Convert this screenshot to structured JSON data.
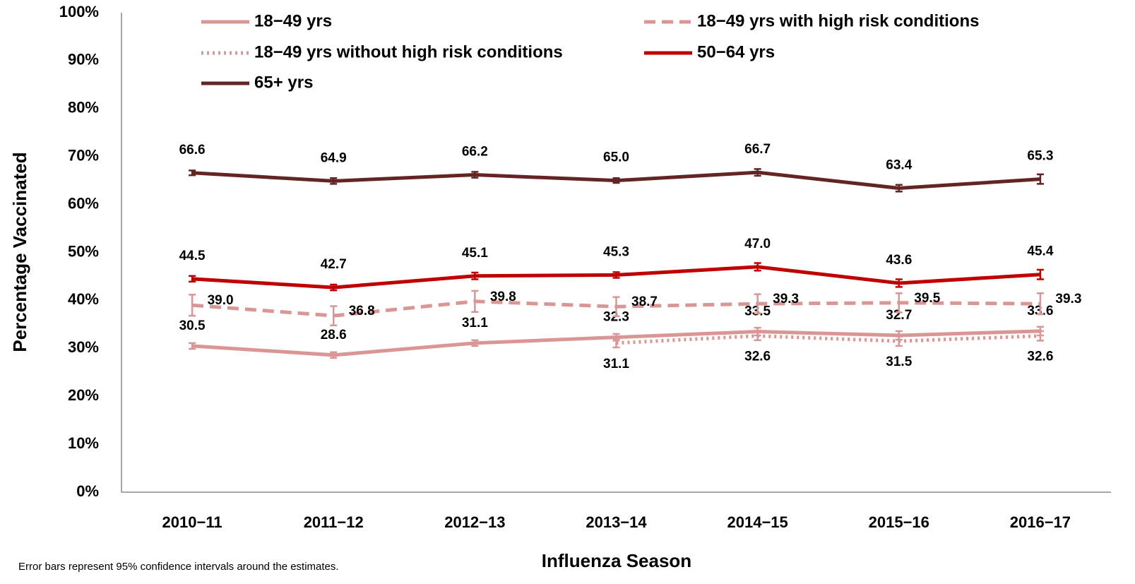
{
  "chart_data": {
    "type": "line",
    "x_label": "Influenza Season",
    "y_label": "Percentage Vaccinated",
    "note": "Error bars represent 95% confidence intervals around the estimates.",
    "categories": [
      "2010−11",
      "2011−12",
      "2012−13",
      "2013−14",
      "2014−15",
      "2015−16",
      "2016−17"
    ],
    "ylim": [
      0,
      100
    ],
    "yticks": [
      {
        "value": 0,
        "label": "0%"
      },
      {
        "value": 10,
        "label": "10%"
      },
      {
        "value": 20,
        "label": "20%"
      },
      {
        "value": 30,
        "label": "30%"
      },
      {
        "value": 40,
        "label": "40%"
      },
      {
        "value": 50,
        "label": "50%"
      },
      {
        "value": 60,
        "label": "60%"
      },
      {
        "value": 70,
        "label": "70%"
      },
      {
        "value": 80,
        "label": "80%"
      },
      {
        "value": 90,
        "label": "90%"
      },
      {
        "value": 100,
        "label": "100%"
      }
    ],
    "grid": false,
    "series": [
      {
        "name": "18−49 yrs",
        "color": "#d99694",
        "line_style": "solid",
        "values": [
          30.5,
          28.6,
          31.1,
          32.3,
          33.5,
          32.7,
          33.6
        ],
        "value_labels": [
          "30.5",
          "28.6",
          "31.1",
          "32.3",
          "33.5",
          "32.7",
          "33.6"
        ],
        "errors": [
          0.6,
          0.6,
          0.6,
          0.7,
          0.8,
          0.9,
          0.9
        ]
      },
      {
        "name": "18−49 yrs with high risk conditions",
        "color": "#d99694",
        "line_style": "dashed",
        "values": [
          39.0,
          36.8,
          39.8,
          38.7,
          39.3,
          39.5,
          39.3
        ],
        "value_labels": [
          "39.0",
          "36.8",
          "39.8",
          "38.7",
          "39.3",
          "39.5",
          "39.3"
        ],
        "errors": [
          2.2,
          2.0,
          2.2,
          2.0,
          2.0,
          2.0,
          2.2
        ]
      },
      {
        "name": "18−49 yrs without high risk conditions",
        "color": "#d99694",
        "line_style": "dotted",
        "values": [
          null,
          null,
          null,
          31.1,
          32.6,
          31.5,
          32.6
        ],
        "value_labels": [
          null,
          null,
          null,
          "31.1",
          "32.6",
          "31.5",
          "32.6"
        ],
        "errors": [
          null,
          null,
          null,
          0.9,
          0.9,
          1.0,
          1.0
        ]
      },
      {
        "name": "50−64 yrs",
        "color": "#c00000",
        "line_style": "solid",
        "values": [
          44.5,
          42.7,
          45.1,
          45.3,
          47.0,
          43.6,
          45.4
        ],
        "value_labels": [
          "44.5",
          "42.7",
          "45.1",
          "45.3",
          "47.0",
          "43.6",
          "45.4"
        ],
        "errors": [
          0.6,
          0.6,
          0.7,
          0.6,
          0.8,
          0.8,
          1.0
        ]
      },
      {
        "name": "65+ yrs",
        "color": "#632523",
        "line_style": "solid",
        "values": [
          66.6,
          64.9,
          66.2,
          65.0,
          66.7,
          63.4,
          65.3
        ],
        "value_labels": [
          "66.6",
          "64.9",
          "66.2",
          "65.0",
          "66.7",
          "63.4",
          "65.3"
        ],
        "errors": [
          0.5,
          0.6,
          0.6,
          0.5,
          0.7,
          0.7,
          1.0
        ]
      }
    ]
  }
}
